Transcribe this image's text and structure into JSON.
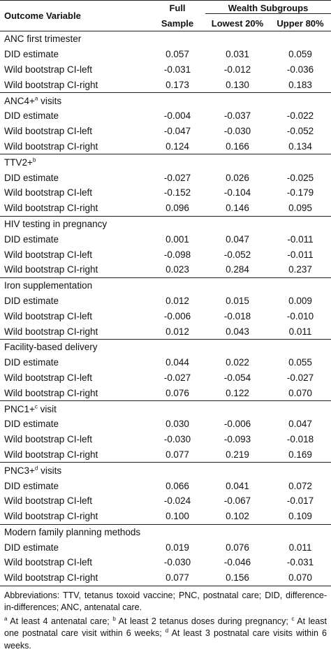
{
  "header": {
    "outcome_label": "Outcome Variable",
    "full_line1": "Full",
    "full_line2": "Sample",
    "wealth_label": "Wealth Subgroups",
    "lowest_label": "Lowest 20%",
    "upper_label": "Upper 80%"
  },
  "groups": [
    {
      "name": "ANC first trimester",
      "sup": "",
      "suffix": "",
      "rows": [
        {
          "label": "DID estimate",
          "full": "0.057",
          "lowest": "0.031",
          "upper": "0.059"
        },
        {
          "label": "Wild bootstrap CI-left",
          "full": "-0.031",
          "lowest": "-0.012",
          "upper": "-0.036"
        },
        {
          "label": "Wild bootstrap CI-right",
          "full": "0.173",
          "lowest": "0.130",
          "upper": "0.183"
        }
      ]
    },
    {
      "name": "ANC4+",
      "sup": "a",
      "suffix": " visits",
      "rows": [
        {
          "label": "DID estimate",
          "full": "-0.004",
          "lowest": "-0.037",
          "upper": "-0.022"
        },
        {
          "label": "Wild bootstrap CI-left",
          "full": "-0.047",
          "lowest": "-0.030",
          "upper": "-0.052"
        },
        {
          "label": "Wild bootstrap CI-right",
          "full": "0.124",
          "lowest": "0.166",
          "upper": "0.134"
        }
      ]
    },
    {
      "name": "TTV2+",
      "sup": "b",
      "suffix": "",
      "rows": [
        {
          "label": "DID estimate",
          "full": "-0.027",
          "lowest": "0.026",
          "upper": "-0.025"
        },
        {
          "label": "Wild bootstrap CI-left",
          "full": "-0.152",
          "lowest": "-0.104",
          "upper": "-0.179"
        },
        {
          "label": "Wild bootstrap CI-right",
          "full": "0.096",
          "lowest": "0.146",
          "upper": "0.095"
        }
      ]
    },
    {
      "name": "HIV testing in pregnancy",
      "sup": "",
      "suffix": "",
      "rows": [
        {
          "label": "DID estimate",
          "full": "0.001",
          "lowest": "0.047",
          "upper": "-0.011"
        },
        {
          "label": "Wild bootstrap CI-left",
          "full": "-0.098",
          "lowest": "-0.052",
          "upper": "-0.011"
        },
        {
          "label": "Wild bootstrap CI-right",
          "full": "0.023",
          "lowest": "0.284",
          "upper": "0.237"
        }
      ]
    },
    {
      "name": "Iron supplementation",
      "sup": "",
      "suffix": "",
      "rows": [
        {
          "label": "DID estimate",
          "full": "0.012",
          "lowest": "0.015",
          "upper": "0.009"
        },
        {
          "label": "Wild bootstrap CI-left",
          "full": "-0.006",
          "lowest": "-0.018",
          "upper": "-0.010"
        },
        {
          "label": "Wild bootstrap CI-right",
          "full": "0.012",
          "lowest": "0.043",
          "upper": "0.011"
        }
      ]
    },
    {
      "name": "Facility-based delivery",
      "sup": "",
      "suffix": "",
      "rows": [
        {
          "label": "DID estimate",
          "full": "0.044",
          "lowest": "0.022",
          "upper": "0.055"
        },
        {
          "label": "Wild bootstrap CI-left",
          "full": "-0.027",
          "lowest": "-0.054",
          "upper": "-0.027"
        },
        {
          "label": "Wild bootstrap CI-right",
          "full": "0.076",
          "lowest": "0.122",
          "upper": "0.070"
        }
      ]
    },
    {
      "name": "PNC1+",
      "sup": "c",
      "suffix": " visit",
      "rows": [
        {
          "label": "DID estimate",
          "full": "0.030",
          "lowest": "-0.006",
          "upper": "0.047"
        },
        {
          "label": "Wild bootstrap CI-left",
          "full": "-0.030",
          "lowest": "-0.093",
          "upper": "-0.018"
        },
        {
          "label": "Wild bootstrap CI-right",
          "full": "0.077",
          "lowest": "0.219",
          "upper": "0.169"
        }
      ]
    },
    {
      "name": "PNC3+",
      "sup": "d",
      "suffix": " visits",
      "rows": [
        {
          "label": "DID estimate",
          "full": "0.066",
          "lowest": "0.041",
          "upper": "0.072"
        },
        {
          "label": "Wild bootstrap CI-left",
          "full": "-0.024",
          "lowest": "-0.067",
          "upper": "-0.017"
        },
        {
          "label": "Wild bootstrap CI-right",
          "full": "0.100",
          "lowest": "0.102",
          "upper": "0.109"
        }
      ]
    },
    {
      "name": "Modern family planning methods",
      "sup": "",
      "suffix": "",
      "rows": [
        {
          "label": "DID estimate",
          "full": "0.019",
          "lowest": "0.076",
          "upper": "0.011"
        },
        {
          "label": "Wild bootstrap CI-left",
          "full": "-0.030",
          "lowest": "-0.046",
          "upper": "-0.031"
        },
        {
          "label": "Wild bootstrap CI-right",
          "full": "0.077",
          "lowest": "0.156",
          "upper": "0.070"
        }
      ]
    }
  ],
  "notes": {
    "abbreviations": "Abbreviations: TTV, tetanus toxoid vaccine; PNC, postnatal care; DID, difference-in-differences; ANC, antenatal care.",
    "footnotes": [
      {
        "mark": "a",
        "text": " At least 4 antenatal care; "
      },
      {
        "mark": "b",
        "text": " At least 2 tetanus doses during pregnancy; "
      },
      {
        "mark": "c",
        "text": " At least one postnatal care visit within 6 weeks; "
      },
      {
        "mark": "d",
        "text": " At least 3 postnatal care visits within 6 weeks."
      }
    ]
  }
}
